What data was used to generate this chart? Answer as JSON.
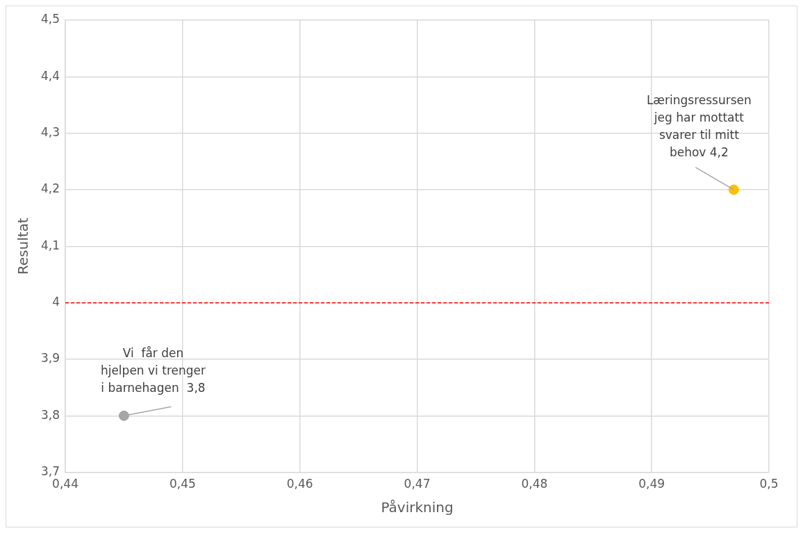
{
  "chart_data": {
    "type": "scatter",
    "xlabel": "Påvirkning",
    "ylabel": "Resultat",
    "series": [
      {
        "color": "#a5a5a5",
        "x": [
          0.445
        ],
        "values": [
          3.8
        ]
      },
      {
        "color": "#ffc000",
        "x": [
          0.497
        ],
        "values": [
          4.2
        ]
      }
    ],
    "xlim": [
      0.44,
      0.5
    ],
    "ylim": [
      3.7,
      4.5
    ],
    "xticks": [
      {
        "value": 0.44,
        "label": "0,44"
      },
      {
        "value": 0.45,
        "label": "0,45"
      },
      {
        "value": 0.46,
        "label": "0,46"
      },
      {
        "value": 0.47,
        "label": "0,47"
      },
      {
        "value": 0.48,
        "label": "0,48"
      },
      {
        "value": 0.49,
        "label": "0,49"
      },
      {
        "value": 0.5,
        "label": "0,5"
      }
    ],
    "yticks": [
      {
        "value": 3.7,
        "label": "3,7"
      },
      {
        "value": 3.8,
        "label": "3,8"
      },
      {
        "value": 3.9,
        "label": "3,9"
      },
      {
        "value": 4,
        "label": "4"
      },
      {
        "value": 4.1,
        "label": "4,1"
      },
      {
        "value": 4.2,
        "label": "4,2"
      },
      {
        "value": 4.3,
        "label": "4,3"
      },
      {
        "value": 4.4,
        "label": "4,4"
      },
      {
        "value": 4.5,
        "label": "4,5"
      }
    ],
    "ref_lines": [
      {
        "axis": "y",
        "value": 4,
        "color": "#ff0000",
        "line_style": "dashed"
      }
    ],
    "annotations": [
      {
        "text": "Vi  får den\nhjelpen vi trenger\ni barnehagen  3,8",
        "x": 0.445,
        "y": 3.8
      },
      {
        "text": "Læringsressursen\njeg har mottatt\nsvarer til mitt\nbehov 4,2",
        "x": 0.497,
        "y": 4.2
      }
    ],
    "grid": true,
    "legend": false,
    "marker": "circle"
  }
}
